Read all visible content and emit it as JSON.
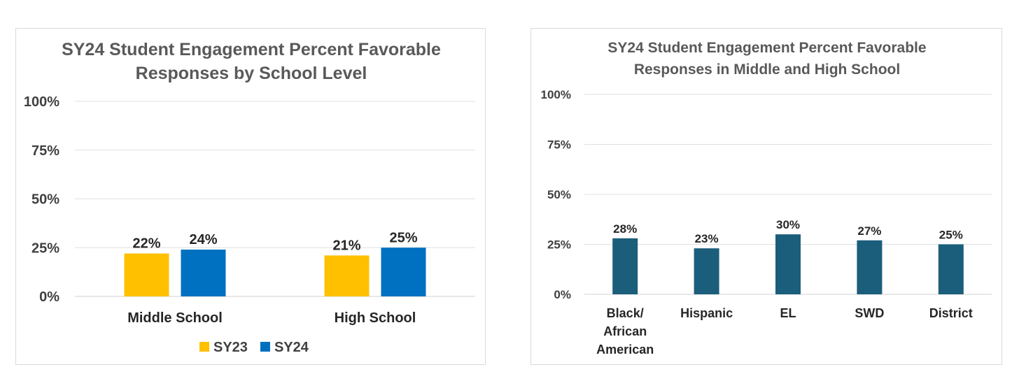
{
  "chart_data": [
    {
      "type": "bar",
      "title_lines": [
        "SY24 Student Engagement Percent Favorable",
        "Responses by School Level"
      ],
      "categories": [
        "Middle School",
        "High School"
      ],
      "series": [
        {
          "name": "SY23",
          "values": [
            22,
            21
          ],
          "labels": [
            "22%",
            "21%"
          ],
          "color": "#FFC000"
        },
        {
          "name": "SY24",
          "values": [
            24,
            25
          ],
          "labels": [
            "24%",
            "25%"
          ],
          "color": "#0070C0"
        }
      ],
      "ylim": [
        0,
        100
      ],
      "yticks": [
        0,
        25,
        50,
        75,
        100
      ],
      "ytick_labels": [
        "0%",
        "25%",
        "50%",
        "75%",
        "100%"
      ],
      "grid": true,
      "legend": "bottom"
    },
    {
      "type": "bar",
      "title_lines": [
        "SY24 Student Engagement Percent Favorable",
        "Responses in Middle and High School"
      ],
      "categories": [
        [
          "Black/",
          "African",
          "American"
        ],
        [
          "Hispanic"
        ],
        [
          "EL"
        ],
        [
          "SWD"
        ],
        [
          "District"
        ]
      ],
      "series": [
        {
          "values": [
            28,
            23,
            30,
            27,
            25
          ],
          "labels": [
            "28%",
            "23%",
            "30%",
            "27%",
            "25%"
          ],
          "color": "#1B5E7B"
        }
      ],
      "ylim": [
        0,
        100
      ],
      "yticks": [
        0,
        25,
        50,
        75,
        100
      ],
      "ytick_labels": [
        "0%",
        "25%",
        "50%",
        "75%",
        "100%"
      ],
      "grid": true,
      "legend": "none"
    }
  ]
}
